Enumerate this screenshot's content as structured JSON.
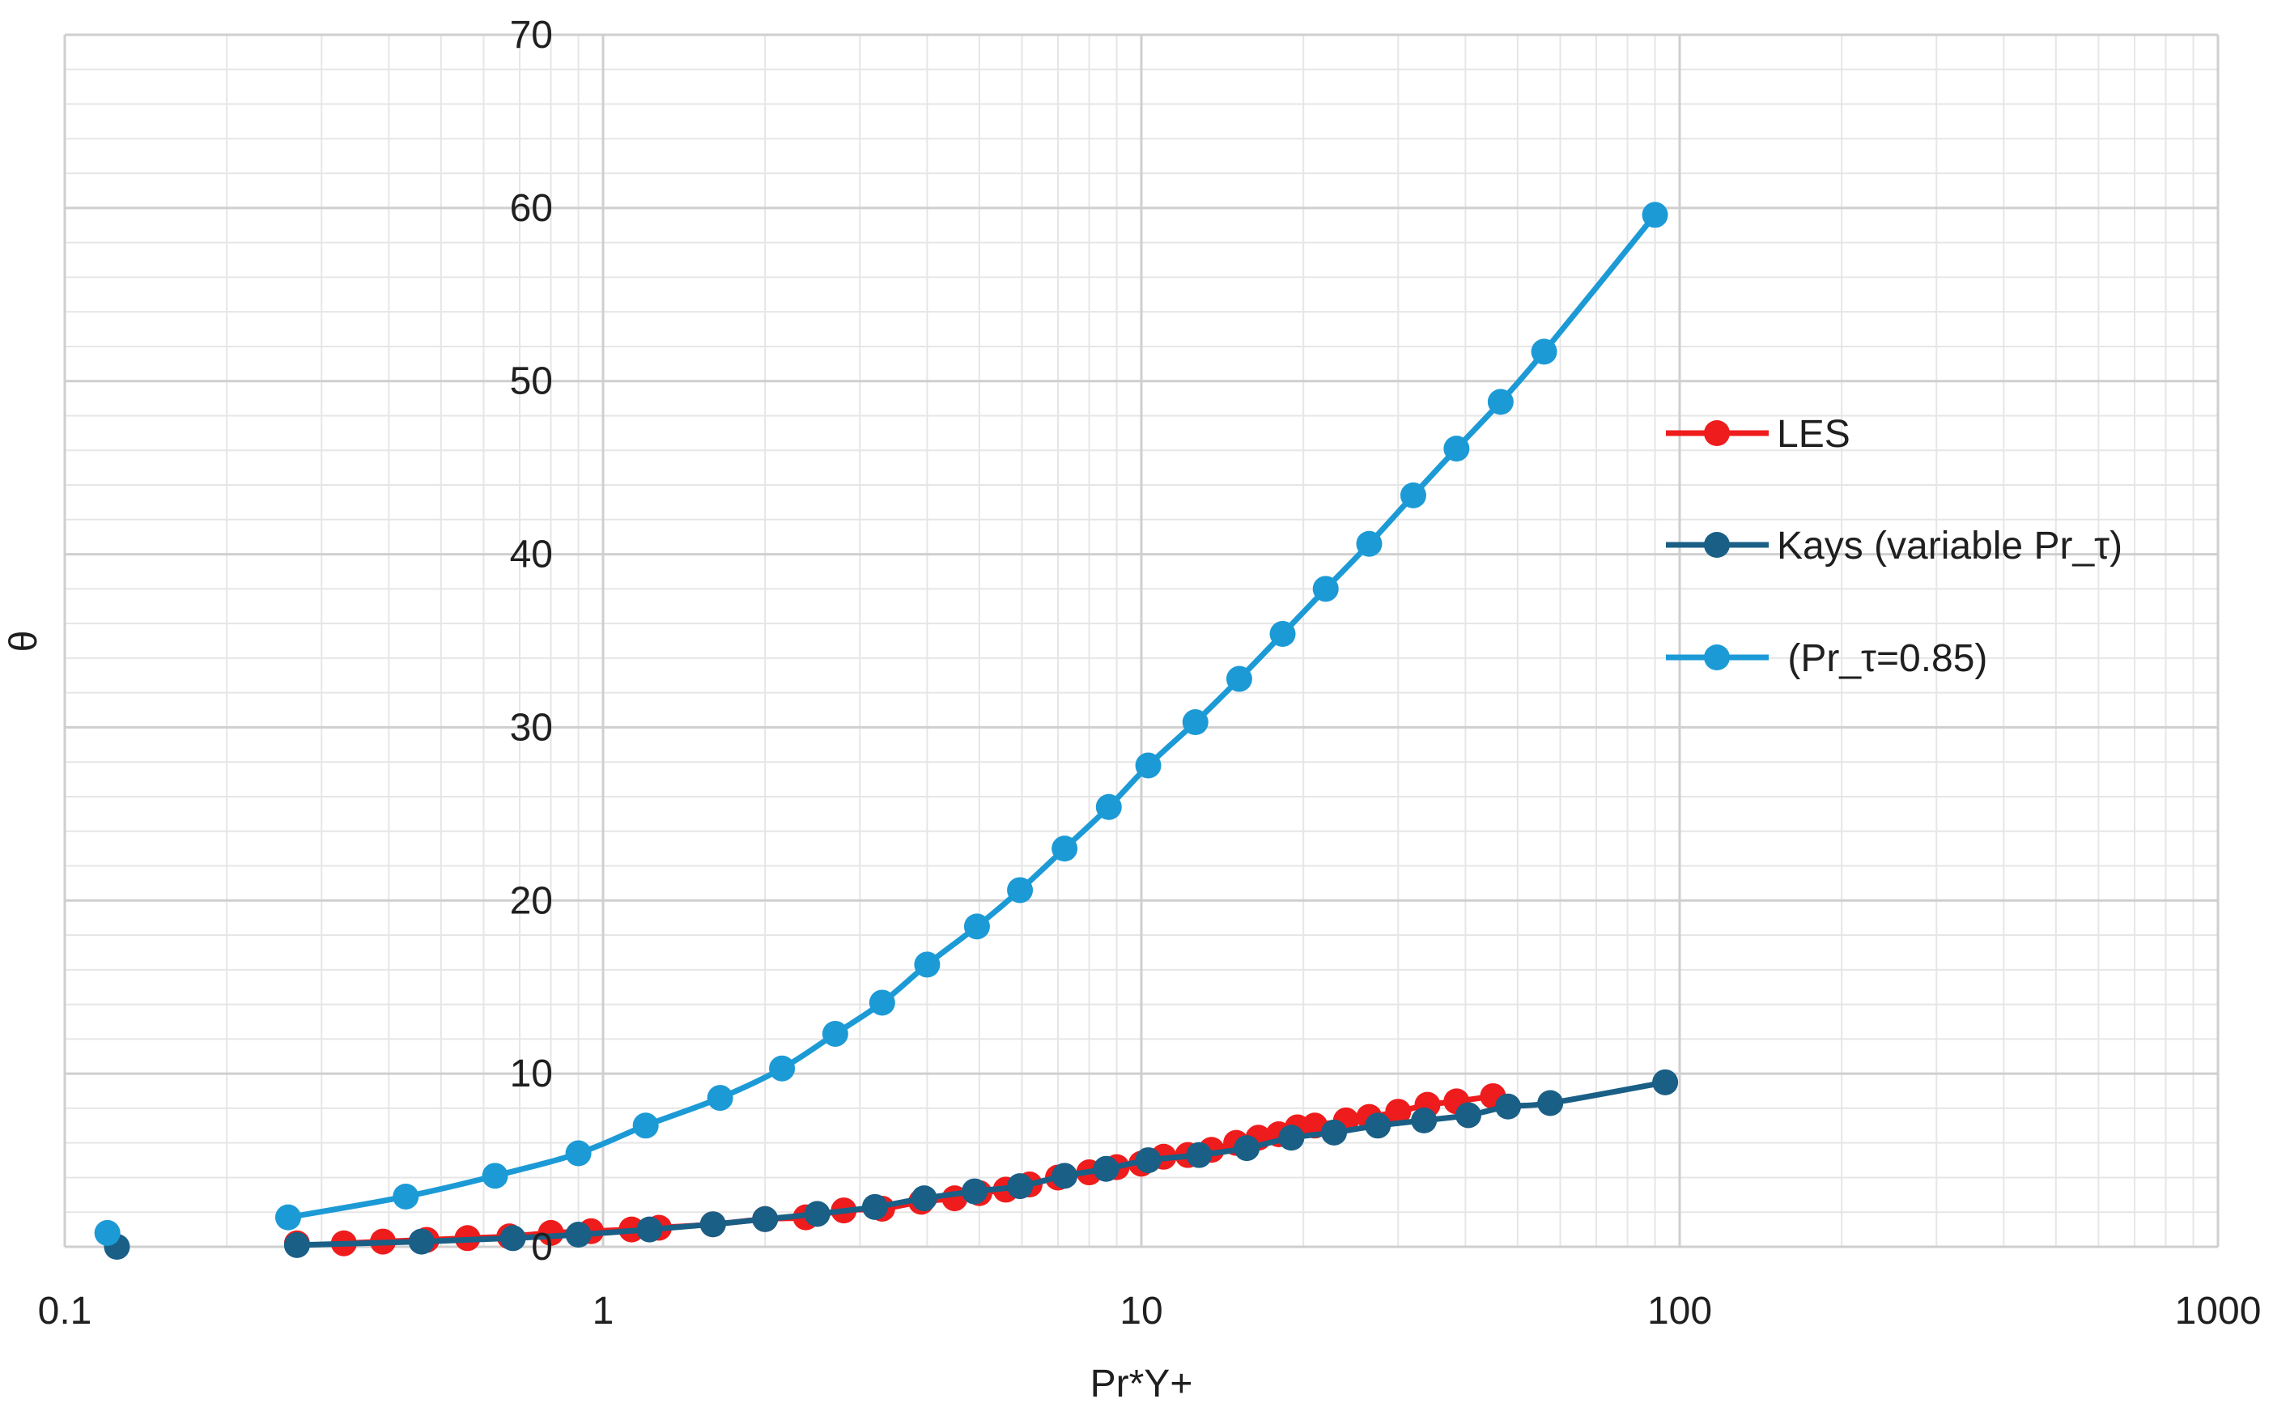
{
  "chart_data": {
    "type": "scatter",
    "title": "",
    "xlabel": "Pr*Y+",
    "ylabel": "θ",
    "x_scale": "log",
    "xlim": [
      0.1,
      1000
    ],
    "ylim": [
      0,
      70
    ],
    "x_tick_labels": [
      "0.1",
      "1",
      "10",
      "100",
      "1000"
    ],
    "y_tick_labels": [
      "0",
      "10",
      "20",
      "30",
      "40",
      "50",
      "60",
      "70"
    ],
    "grid": true,
    "legend_position": "right",
    "series": [
      {
        "name": "LES",
        "color": "#ee1c1c",
        "marker": "circle",
        "x": [
          0.27,
          0.33,
          0.39,
          0.47,
          0.56,
          0.67,
          0.8,
          0.95,
          1.13,
          1.27,
          1.6,
          2.0,
          2.38,
          2.8,
          3.3,
          3.9,
          4.5,
          5.0,
          5.6,
          6.2,
          7.0,
          8.0,
          9.0,
          10.0,
          11.0,
          12.2,
          13.5,
          15.0,
          16.5,
          18.0,
          19.5,
          21.0,
          24.0,
          26.5,
          30.0,
          34.0,
          38.5,
          45.0
        ],
        "y": [
          0.2,
          0.2,
          0.3,
          0.4,
          0.5,
          0.6,
          0.8,
          0.9,
          1.0,
          1.1,
          1.3,
          1.6,
          1.7,
          2.1,
          2.2,
          2.6,
          2.8,
          3.1,
          3.3,
          3.6,
          4.0,
          4.3,
          4.6,
          4.8,
          5.2,
          5.3,
          5.6,
          6.0,
          6.3,
          6.5,
          6.9,
          7.0,
          7.3,
          7.5,
          7.8,
          8.2,
          8.4,
          8.7
        ]
      },
      {
        "name": "Kays (variable Pr_τ)",
        "color": "#1a5f86",
        "marker": "circle",
        "x": [
          0.125,
          0.27,
          0.46,
          0.68,
          0.9,
          1.22,
          1.6,
          2.0,
          2.5,
          3.2,
          3.95,
          4.9,
          5.95,
          7.2,
          8.6,
          10.3,
          12.8,
          15.7,
          19.0,
          22.8,
          27.5,
          33.5,
          40.5,
          48.0,
          57.5,
          94.0
        ],
        "y": [
          0.0,
          0.1,
          0.3,
          0.5,
          0.7,
          1.0,
          1.3,
          1.6,
          1.9,
          2.3,
          2.8,
          3.2,
          3.5,
          4.1,
          4.5,
          5.0,
          5.3,
          5.7,
          6.3,
          6.6,
          7.0,
          7.3,
          7.6,
          8.1,
          8.3,
          9.5
        ]
      },
      {
        "name": " (Pr_τ=0.85)",
        "color": "#1c9ad6",
        "marker": "circle",
        "x": [
          0.12,
          0.26,
          0.43,
          0.63,
          0.9,
          1.2,
          1.65,
          2.15,
          2.7,
          3.3,
          4.0,
          4.95,
          5.95,
          7.2,
          8.7,
          10.3,
          12.6,
          15.2,
          18.3,
          22.0,
          26.5,
          32.0,
          38.5,
          46.5,
          56.0,
          90.0
        ],
        "y": [
          0.8,
          1.7,
          2.9,
          4.1,
          5.4,
          7.0,
          8.6,
          10.3,
          12.3,
          14.1,
          16.3,
          18.5,
          20.6,
          23.0,
          25.4,
          27.8,
          30.3,
          32.8,
          35.4,
          38.0,
          40.6,
          43.4,
          46.1,
          48.8,
          51.7,
          59.6
        ]
      }
    ]
  }
}
